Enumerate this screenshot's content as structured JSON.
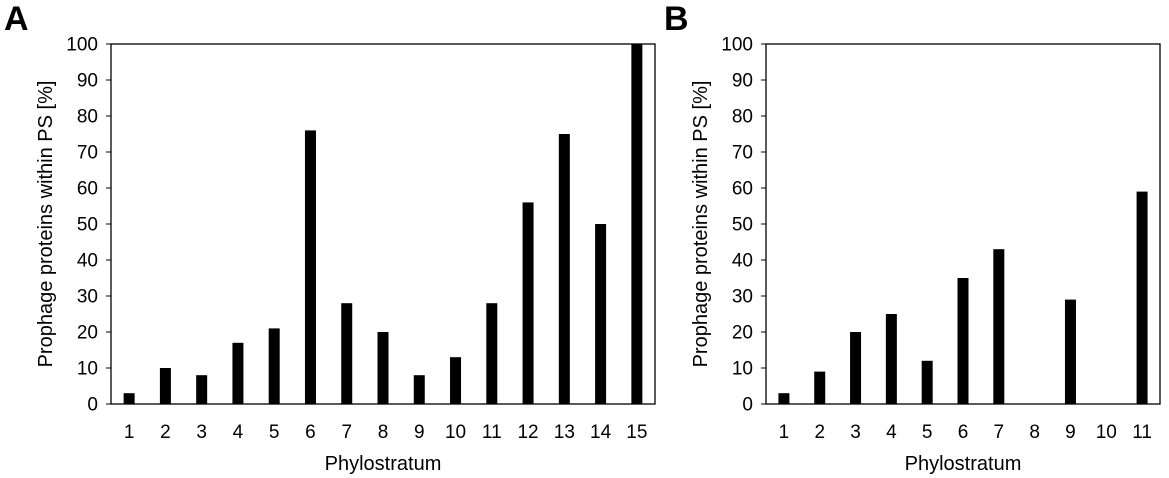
{
  "chart_data": [
    {
      "panel_label": "A",
      "type": "bar",
      "xlabel": "Phylostratum",
      "ylabel": "Prophage proteins within PS [%]",
      "ylim": [
        0,
        100
      ],
      "yticks": [
        "0",
        "10",
        "20",
        "30",
        "40",
        "50",
        "60",
        "70",
        "80",
        "90",
        "100"
      ],
      "categories": [
        "1",
        "2",
        "3",
        "4",
        "5",
        "6",
        "7",
        "8",
        "9",
        "10",
        "11",
        "12",
        "13",
        "14",
        "15"
      ],
      "values": [
        3,
        10,
        8,
        17,
        21,
        76,
        28,
        20,
        8,
        13,
        28,
        56,
        75,
        50,
        100
      ],
      "bar_color": "#000000",
      "grid": false
    },
    {
      "panel_label": "B",
      "type": "bar",
      "xlabel": "Phylostratum",
      "ylabel": "Prophage proteins within PS [%]",
      "ylim": [
        0,
        100
      ],
      "yticks": [
        "0",
        "10",
        "20",
        "30",
        "40",
        "50",
        "60",
        "70",
        "80",
        "90",
        "100"
      ],
      "categories": [
        "1",
        "2",
        "3",
        "4",
        "5",
        "6",
        "7",
        "8",
        "9",
        "10",
        "11"
      ],
      "values": [
        3,
        9,
        20,
        25,
        12,
        35,
        43,
        0,
        29,
        0,
        59
      ],
      "bar_color": "#000000",
      "grid": false
    }
  ]
}
